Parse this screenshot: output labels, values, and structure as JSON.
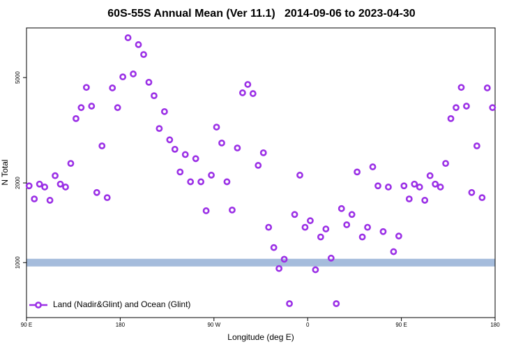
{
  "chart_data": {
    "type": "scatter",
    "title": "60S-55S Annual Mean (Ver 11.1)   2014-09-06 to 2023-04-30",
    "x_label": "Longitude (deg E)",
    "y_label": "N Total",
    "log_y": true,
    "legend": "lower left",
    "hline": 1000,
    "hline_color": "#a5bcdc",
    "xlim": [
      90,
      540
    ],
    "xticks": [
      {
        "value": 90,
        "label": "90 E"
      },
      {
        "value": 180,
        "label": "180"
      },
      {
        "value": 270,
        "label": "90 W"
      },
      {
        "value": 360,
        "label": "0"
      },
      {
        "value": 450,
        "label": "90 E"
      },
      {
        "value": 540,
        "label": "180"
      }
    ],
    "ylim": [
      620,
      7700
    ],
    "yticks": [
      1000,
      2000,
      5000
    ],
    "x": [
      92.5,
      97.5,
      102.5,
      107.5,
      112.5,
      117.5,
      122.5,
      127.5,
      132.5,
      137.5,
      142.5,
      147.5,
      152.5,
      157.5,
      162.5,
      167.5,
      172.5,
      177.5,
      182.5,
      187.5,
      192.5,
      197.5,
      202.5,
      207.5,
      212.5,
      217.5,
      222.5,
      227.5,
      232.5,
      237.5,
      242.5,
      247.5,
      252.5,
      257.5,
      262.5,
      267.5,
      272.5,
      277.5,
      282.5,
      287.5,
      292.5,
      297.5,
      302.5,
      307.5,
      312.5,
      317.5,
      322.5,
      327.5,
      332.5,
      337.5,
      342.5,
      347.5,
      352.5,
      357.5,
      362.5,
      367.5,
      372.5,
      377.5,
      382.5,
      387.5,
      392.5,
      397.5,
      402.5,
      407.5,
      412.5,
      417.5,
      422.5,
      427.5,
      432.5,
      437.5,
      442.5,
      447.5,
      452.5,
      457.5,
      462.5,
      467.5,
      472.5,
      477.5,
      482.5,
      487.5,
      492.5,
      497.5,
      502.5,
      507.5,
      512.5,
      517.5,
      522.5,
      527.5,
      532.5,
      537.5
    ],
    "series": [
      {
        "name": "Land (Nadir&Glint) and Ocean (Glint)",
        "color": "#9b30e6",
        "values": [
          1950,
          1740,
          1980,
          1930,
          1720,
          2130,
          1980,
          1930,
          2370,
          3500,
          3850,
          4590,
          3900,
          1840,
          2760,
          1760,
          4570,
          3850,
          5030,
          7070,
          5160,
          6660,
          6110,
          4800,
          4270,
          3210,
          3720,
          2910,
          2680,
          2200,
          2560,
          2020,
          2470,
          2020,
          1570,
          2140,
          3250,
          2830,
          2020,
          1580,
          2710,
          4380,
          4710,
          4350,
          2330,
          2600,
          1360,
          1140,
          950,
          1030,
          700,
          1520,
          2140,
          1360,
          1440,
          940,
          1250,
          1340,
          1040,
          700,
          1600,
          1390,
          1520,
          2200,
          1250,
          1360,
          2300,
          1950,
          1310,
          1930,
          1100,
          1260,
          1950,
          1740,
          1980,
          1930,
          1720,
          2130,
          1980,
          1930,
          2370,
          3500,
          3850,
          4590,
          3900,
          1840,
          2760,
          1760,
          4570,
          3850
        ]
      }
    ]
  }
}
